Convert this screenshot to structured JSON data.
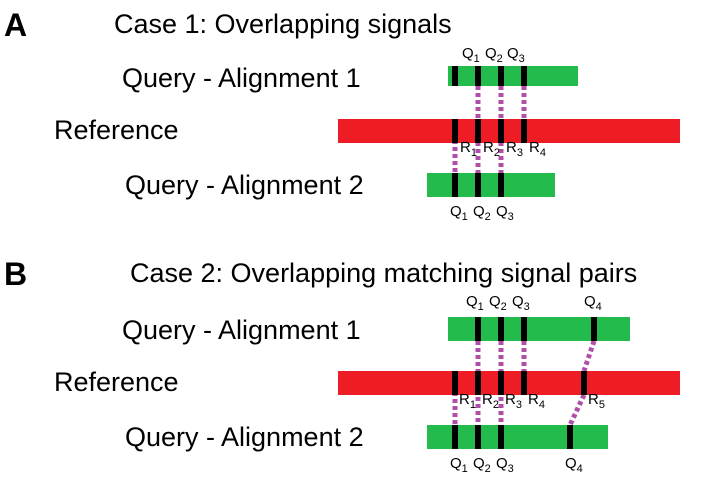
{
  "colors": {
    "query": "#22bb4c",
    "reference": "#ee1c25",
    "signal": "#000000",
    "link": "#b04fa8"
  },
  "panels": [
    {
      "letter": "A",
      "title": "Case 1: Overlapping signals",
      "rows": [
        {
          "label": "Query - Alignment 1",
          "kind": "query",
          "signals": [
            "Q1",
            "Q2",
            "Q3"
          ]
        },
        {
          "label": "Reference",
          "kind": "reference",
          "signals": [
            "R1",
            "R2",
            "R3",
            "R4"
          ]
        },
        {
          "label": "Query - Alignment 2",
          "kind": "query",
          "signals": [
            "Q1",
            "Q2",
            "Q3"
          ]
        }
      ]
    },
    {
      "letter": "B",
      "title": "Case 2: Overlapping matching signal pairs",
      "rows": [
        {
          "label": "Query - Alignment 1",
          "kind": "query",
          "signals": [
            "Q1",
            "Q2",
            "Q3",
            "Q4"
          ]
        },
        {
          "label": "Reference",
          "kind": "reference",
          "signals": [
            "R1",
            "R2",
            "R3",
            "R4",
            "R5"
          ]
        },
        {
          "label": "Query - Alignment 2",
          "kind": "query",
          "signals": [
            "Q1",
            "Q2",
            "Q3",
            "Q4"
          ]
        }
      ]
    }
  ]
}
